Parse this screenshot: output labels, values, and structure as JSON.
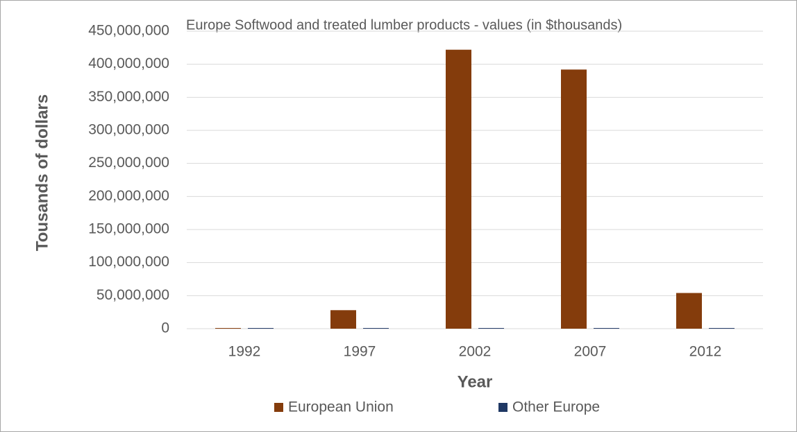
{
  "chart_data": {
    "type": "bar",
    "title": "Europe Softwood and treated lumber products - values (in $thousands)",
    "x_label": "Year",
    "y_label": "Tousands of dollars",
    "categories": [
      "1992",
      "1997",
      "2002",
      "2007",
      "2012"
    ],
    "series": [
      {
        "name": "European Union",
        "color": "#843c0c",
        "values": [
          1000000,
          28000000,
          422000000,
          392000000,
          54000000
        ]
      },
      {
        "name": "Other Europe",
        "color": "#1f3864",
        "values": [
          1000000,
          1000000,
          1000000,
          1000000,
          1000000
        ]
      }
    ],
    "ylim": [
      0,
      450000000
    ],
    "yticks": [
      0,
      {
        "value": 50000000,
        "label": "50,000,000"
      },
      {
        "value": 100000000,
        "label": "100,000,000"
      },
      {
        "value": 150000000,
        "label": "150,000,000"
      },
      {
        "value": 200000000,
        "label": "200,000,000"
      },
      {
        "value": 250000000,
        "label": "250,000,000"
      },
      {
        "value": 300000000,
        "label": "300,000,000"
      },
      {
        "value": 350000000,
        "label": "350,000,000"
      },
      {
        "value": 400000000,
        "label": "400,000,000"
      },
      {
        "value": 450000000,
        "label": "450,000,000"
      }
    ],
    "grid": true,
    "legend": "bottom"
  }
}
